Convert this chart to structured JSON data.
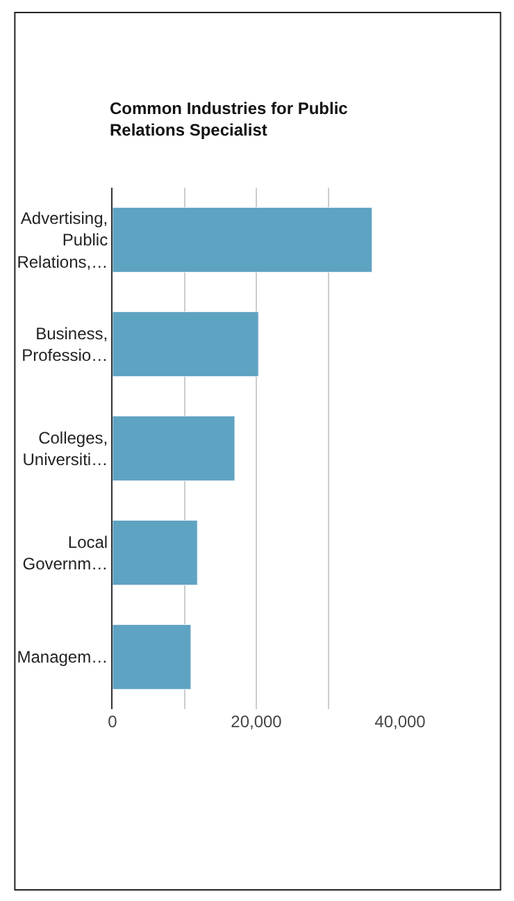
{
  "chart_data": {
    "type": "bar",
    "orientation": "horizontal",
    "title": "Common Industries for Public Relations Specialist",
    "categories": [
      "Advertising, Public Relations,…",
      "Business, Professio…",
      "Colleges, Universiti…",
      "Local Governm…",
      "Managem…"
    ],
    "values": [
      36100,
      20300,
      17000,
      11800,
      10900
    ],
    "color": "#5ea3c1",
    "xlim": [
      0,
      40000
    ],
    "xticks": [
      0,
      {
        "value": 10000,
        "label": null
      },
      {
        "value": 20000,
        "label": "20,000"
      },
      {
        "value": 30000,
        "label": null
      },
      {
        "value": 40000,
        "label": "40,000"
      }
    ],
    "grid": "x",
    "legend": false
  }
}
